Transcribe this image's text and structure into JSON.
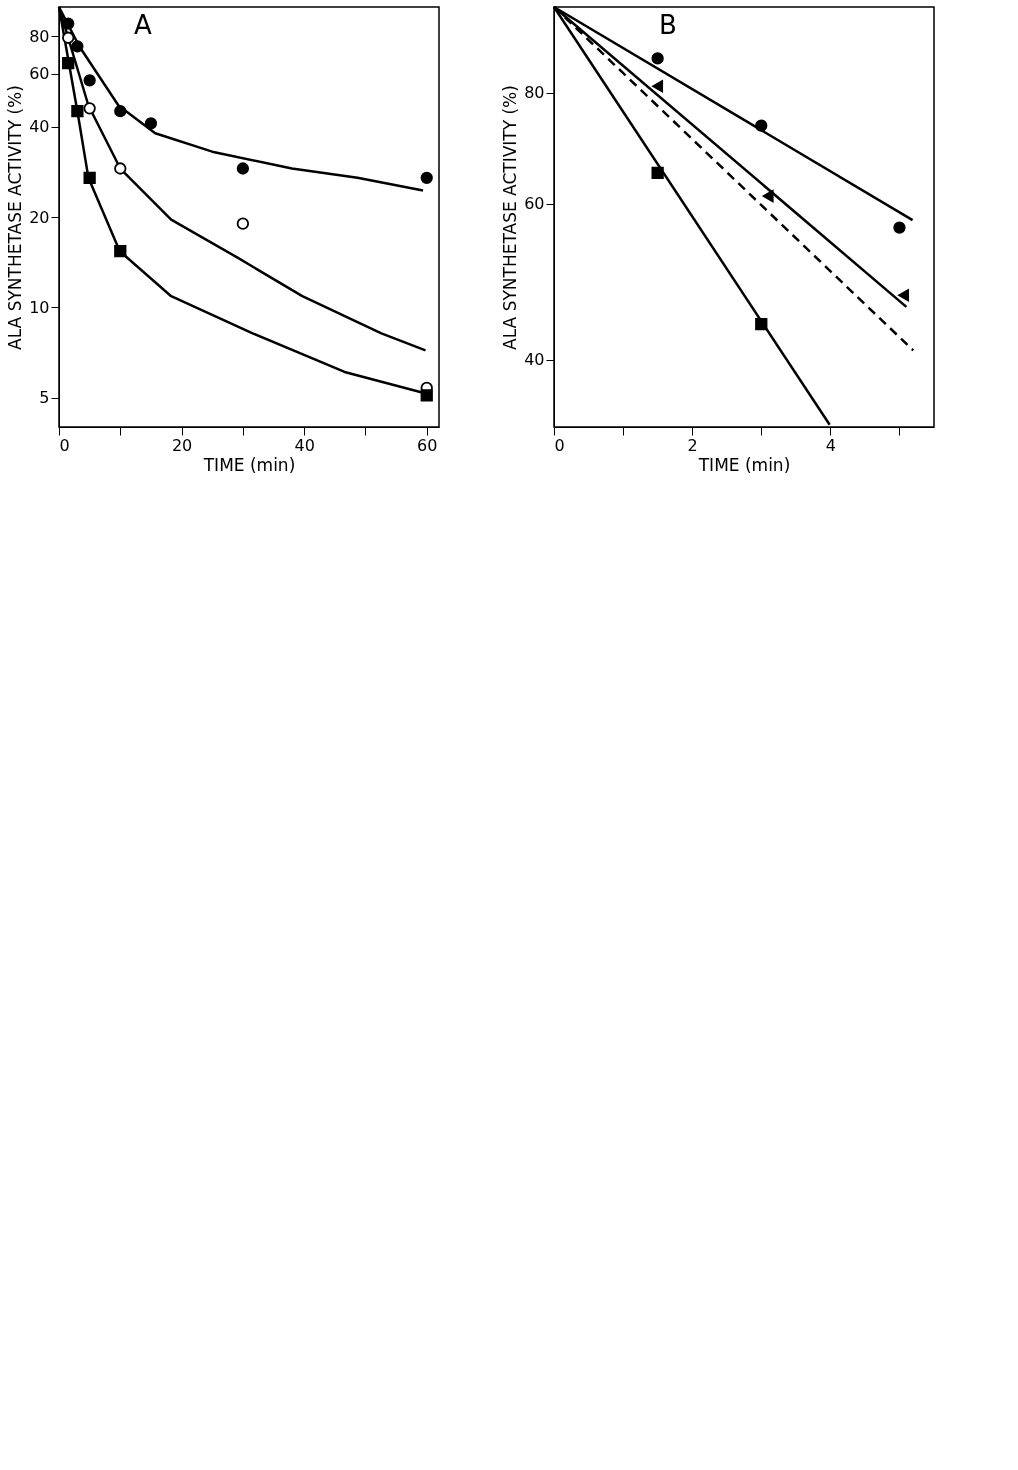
{
  "chart_data": [
    {
      "type": "scatter",
      "annotations": [
        "A"
      ],
      "xlabel": "TIME (min)",
      "ylabel": "ALA SYNTHETASE ACTIVITY (%)",
      "log": "y",
      "grid": false,
      "xlim": [
        0,
        62
      ],
      "xticks": [
        0,
        {
          "value": 10,
          "label": null
        },
        20,
        {
          "value": 30,
          "label": null
        },
        40,
        {
          "value": 50,
          "label": null
        },
        60
      ],
      "ylim": [
        4,
        100
      ],
      "yticks": [
        5,
        10,
        20,
        40,
        60,
        80
      ],
      "series": [
        {
          "marker": "circle",
          "color": "#000000",
          "x": [
            1.5,
            3,
            5,
            10,
            15,
            30,
            60
          ],
          "values": [
            88,
            74,
            57,
            45,
            41,
            29,
            27
          ]
        },
        {
          "marker": "circle",
          "color": "#ffffff",
          "x": [
            1.5,
            5,
            10,
            30,
            60
          ],
          "values": [
            79,
            46,
            29,
            19,
            5.4
          ]
        },
        {
          "marker": "square",
          "color": "#000000",
          "x": [
            1.5,
            3,
            5,
            10,
            60
          ],
          "values": [
            65,
            45,
            27,
            15.4,
            5.1
          ]
        },
        {
          "type": "line",
          "line_style": "solid",
          "color": "#000000",
          "x": [
            0,
            3.3,
            9.7,
            15.7,
            25,
            38,
            48.7,
            59.4
          ],
          "values": [
            100,
            74,
            47,
            38,
            33,
            29,
            27,
            24.5
          ]
        },
        {
          "type": "line",
          "line_style": "solid",
          "color": "#000000",
          "x": [
            0,
            4.8,
            10,
            18.3,
            29,
            39.7,
            52.6,
            59.8
          ],
          "values": [
            100,
            47,
            29,
            19.6,
            14.7,
            10.9,
            8.2,
            7.2
          ]
        },
        {
          "type": "line",
          "line_style": "solid",
          "color": "#000000",
          "x": [
            0,
            3,
            4.8,
            9.9,
            18.3,
            31.6,
            46.6,
            59.4
          ],
          "values": [
            100,
            45,
            27,
            15.4,
            10.9,
            8.2,
            6.1,
            5.2
          ]
        }
      ]
    },
    {
      "type": "scatter",
      "annotations": [
        "B"
      ],
      "xlabel": "TIME (min)",
      "ylabel": "ALA SYNTHETASE ACTIVITY (%)",
      "log": "y",
      "grid": false,
      "xlim": [
        0,
        5.5
      ],
      "xticks": [
        0,
        {
          "value": 1,
          "label": null
        },
        2,
        {
          "value": 3,
          "label": null
        },
        4,
        {
          "value": 5,
          "label": null
        }
      ],
      "ylim": [
        33.6,
        100
      ],
      "yticks": [
        40,
        60,
        80
      ],
      "series": [
        {
          "marker": "circle",
          "color": "#000000",
          "x": [
            1.5,
            3,
            5
          ],
          "values": [
            87.5,
            73.5,
            56.4
          ]
        },
        {
          "marker": "triangle",
          "color": "#000000",
          "x": [
            1.5,
            3.1,
            5.06
          ],
          "values": [
            81.4,
            61.2,
            47.3
          ]
        },
        {
          "marker": "square",
          "color": "#000000",
          "x": [
            1.5,
            3
          ],
          "values": [
            65,
            43.9
          ]
        },
        {
          "type": "line",
          "line_style": "solid",
          "color": "#000000",
          "x": [
            0,
            5.19
          ],
          "values": [
            100,
            57.5
          ]
        },
        {
          "type": "line",
          "line_style": "solid",
          "color": "#000000",
          "x": [
            0,
            5.1
          ],
          "values": [
            100,
            45.9
          ]
        },
        {
          "type": "line",
          "line_style": "dashed",
          "color": "#000000",
          "x": [
            0,
            5.2
          ],
          "values": [
            100,
            41
          ]
        },
        {
          "type": "line",
          "line_style": "solid",
          "color": "#000000",
          "x": [
            0,
            3.99
          ],
          "values": [
            100,
            33.8
          ]
        }
      ]
    }
  ]
}
